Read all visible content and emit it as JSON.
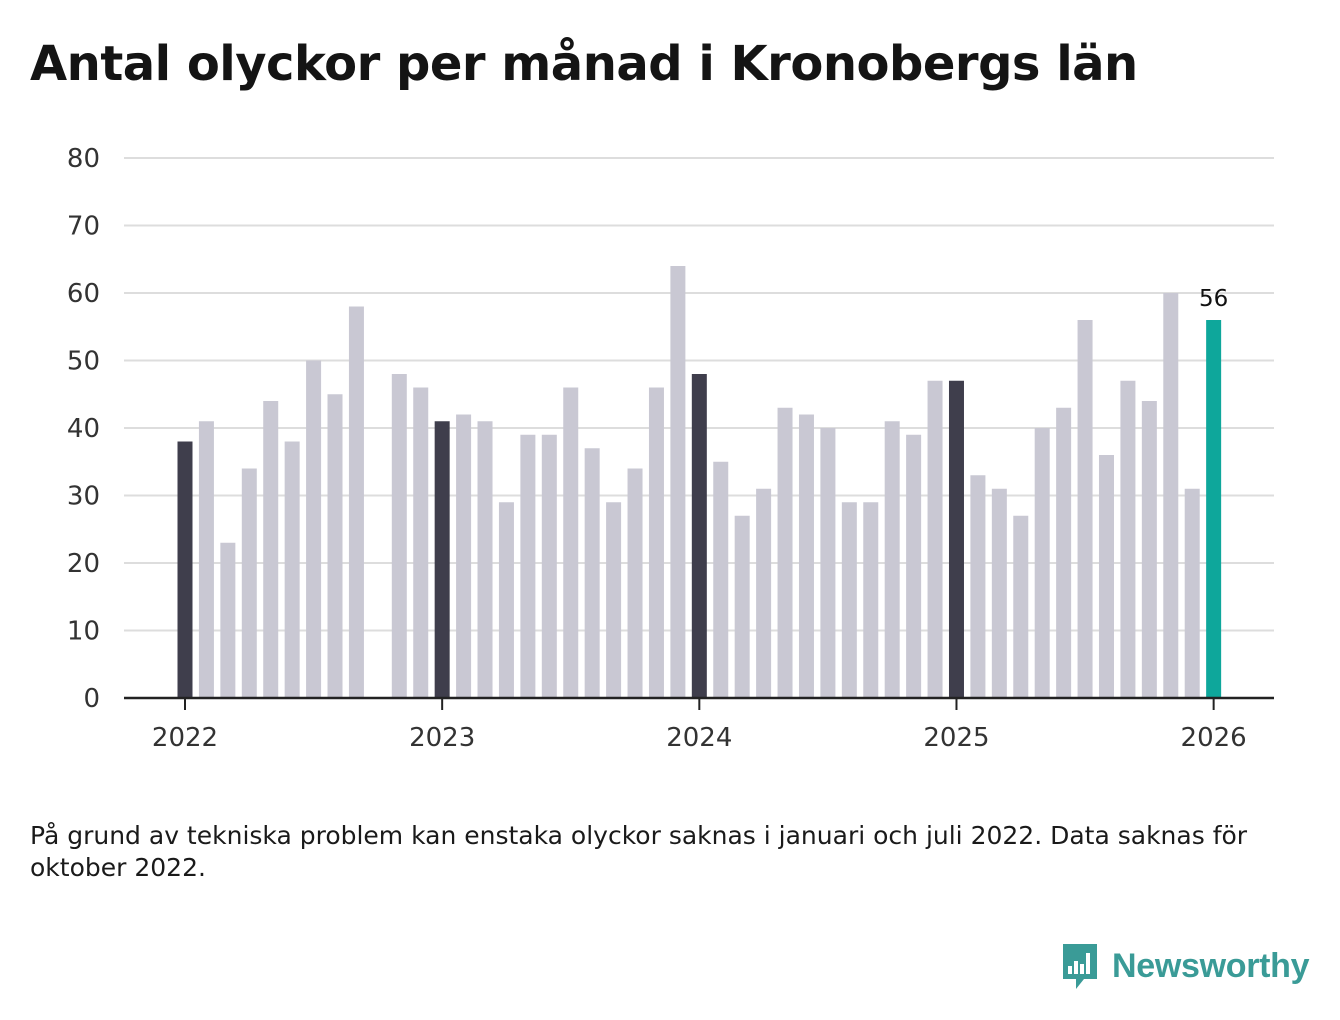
{
  "title": "Antal olyckor per månad i Kronobergs län",
  "note": "På grund av tekniska problem kan enstaka olyckor saknas i januari och juli 2022. Data saknas för oktober 2022.",
  "brand": {
    "name": "Newsworthy",
    "icon": "newsworthy-logo-icon",
    "color": "#3a9b97"
  },
  "colors": {
    "regular": "#c9c8d3",
    "january": "#3f3e4c",
    "latest": "#0ea79b",
    "grid": "#dddddd",
    "axis": "#222222"
  },
  "chart_data": {
    "type": "bar",
    "title": "Antal olyckor per månad i Kronobergs län",
    "xlabel": "",
    "ylabel": "",
    "ylim": [
      0,
      80
    ],
    "yticks": [
      0,
      10,
      20,
      30,
      40,
      50,
      60,
      70,
      80
    ],
    "xticks": [
      "2022",
      "2023",
      "2024",
      "2025",
      "2026"
    ],
    "grid": true,
    "highlight_label": "56",
    "categories": [
      "2022-01",
      "2022-02",
      "2022-03",
      "2022-04",
      "2022-05",
      "2022-06",
      "2022-07",
      "2022-08",
      "2022-09",
      "2022-10",
      "2022-11",
      "2022-12",
      "2023-01",
      "2023-02",
      "2023-03",
      "2023-04",
      "2023-05",
      "2023-06",
      "2023-07",
      "2023-08",
      "2023-09",
      "2023-10",
      "2023-11",
      "2023-12",
      "2024-01",
      "2024-02",
      "2024-03",
      "2024-04",
      "2024-05",
      "2024-06",
      "2024-07",
      "2024-08",
      "2024-09",
      "2024-10",
      "2024-11",
      "2024-12",
      "2025-01",
      "2025-02",
      "2025-03",
      "2025-04",
      "2025-05",
      "2025-06",
      "2025-07",
      "2025-08",
      "2025-09",
      "2025-10",
      "2025-11",
      "2025-12",
      "2026-01"
    ],
    "values": [
      38,
      41,
      23,
      34,
      44,
      38,
      50,
      45,
      58,
      null,
      48,
      46,
      41,
      42,
      41,
      29,
      39,
      39,
      46,
      37,
      29,
      34,
      46,
      64,
      48,
      35,
      27,
      31,
      43,
      42,
      40,
      29,
      29,
      41,
      39,
      47,
      47,
      33,
      31,
      27,
      40,
      43,
      56,
      36,
      47,
      44,
      60,
      31,
      56
    ]
  }
}
